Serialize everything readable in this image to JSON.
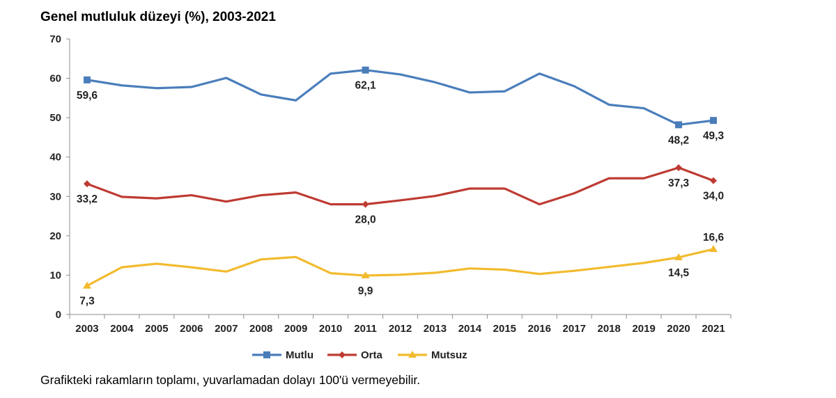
{
  "chart_data": {
    "type": "line",
    "title": "Genel mutluluk düzeyi (%), 2003-2021",
    "xlabel": "",
    "ylabel": "",
    "ylim": [
      0,
      70
    ],
    "yticks": [
      "0",
      "10",
      "20",
      "30",
      "40",
      "50",
      "60",
      "70"
    ],
    "categories": [
      "2003",
      "2004",
      "2005",
      "2006",
      "2007",
      "2008",
      "2009",
      "2010",
      "2011",
      "2012",
      "2013",
      "2014",
      "2015",
      "2016",
      "2017",
      "2018",
      "2019",
      "2020",
      "2021"
    ],
    "series": [
      {
        "name": "Mutlu",
        "color": "#4a7ebb",
        "marker": "square",
        "values": [
          59.6,
          58.2,
          57.5,
          57.8,
          60.1,
          55.9,
          54.4,
          61.2,
          62.1,
          61.0,
          59.0,
          56.4,
          56.7,
          61.2,
          58.0,
          53.3,
          52.4,
          48.2,
          49.3
        ],
        "labels": [
          {
            "index": 0,
            "text": "59,6",
            "pos": "below"
          },
          {
            "index": 8,
            "text": "62,1",
            "pos": "below"
          },
          {
            "index": 17,
            "text": "48,2",
            "pos": "below"
          },
          {
            "index": 18,
            "text": "49,3",
            "pos": "below"
          }
        ]
      },
      {
        "name": "Orta",
        "color": "#be3b33",
        "marker": "diamond",
        "values": [
          33.2,
          29.9,
          29.5,
          30.3,
          28.7,
          30.3,
          31.0,
          28.0,
          28.0,
          29.0,
          30.1,
          32.0,
          32.0,
          28.0,
          30.8,
          34.6,
          34.6,
          37.3,
          34.0
        ],
        "labels": [
          {
            "index": 0,
            "text": "33,2",
            "pos": "below"
          },
          {
            "index": 8,
            "text": "28,0",
            "pos": "below"
          },
          {
            "index": 17,
            "text": "37,3",
            "pos": "below"
          },
          {
            "index": 18,
            "text": "34,0",
            "pos": "below"
          }
        ]
      },
      {
        "name": "Mutsuz",
        "color": "#f2bb2e",
        "marker": "triangle",
        "values": [
          7.3,
          12.0,
          12.9,
          12.0,
          10.9,
          14.0,
          14.6,
          10.5,
          9.9,
          10.1,
          10.6,
          11.7,
          11.4,
          10.3,
          11.1,
          12.1,
          13.1,
          14.5,
          16.6
        ],
        "labels": [
          {
            "index": 0,
            "text": "7,3",
            "pos": "below"
          },
          {
            "index": 8,
            "text": "9,9",
            "pos": "below"
          },
          {
            "index": 17,
            "text": "14,5",
            "pos": "below"
          },
          {
            "index": 18,
            "text": "16,6",
            "pos": "above"
          }
        ]
      }
    ],
    "legend": "bottom",
    "grid": false
  },
  "footnote": "Grafikteki rakamların toplamı, yuvarlamadan dolayı 100'ü vermeyebilir."
}
